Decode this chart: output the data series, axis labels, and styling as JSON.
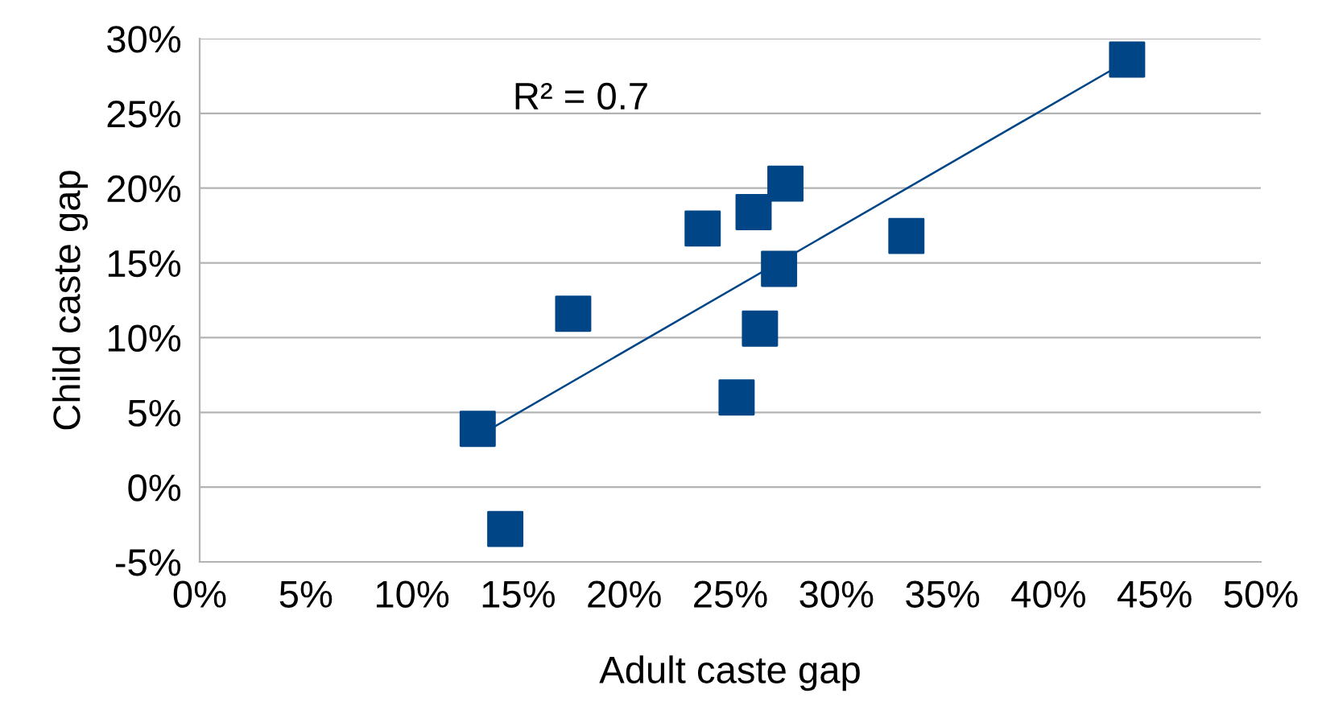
{
  "chart_data": {
    "type": "scatter",
    "xlabel": "Adult caste gap",
    "ylabel": "Child caste gap",
    "grid": "y",
    "legend": false,
    "x": [
      13.1,
      14.4,
      17.6,
      23.7,
      25.3,
      26.1,
      26.4,
      27.3,
      27.6,
      33.3,
      43.7
    ],
    "series": [
      {
        "marker": "square",
        "color": "#004586",
        "values": [
          3.9,
          -2.8,
          11.6,
          17.3,
          6.0,
          18.4,
          10.6,
          14.6,
          20.3,
          16.8,
          28.6
        ]
      },
      {
        "type": "line",
        "marker": "none",
        "line_style": "solid",
        "color": "#004586",
        "x": [
          13.1,
          43.7
        ],
        "values": [
          3.4,
          28.5
        ]
      }
    ],
    "annotations": [
      "R² = 0.7"
    ],
    "xlim": [
      0,
      50
    ],
    "ylim": [
      -5,
      30
    ],
    "xticks": [
      {
        "value": 0,
        "label": "0%"
      },
      {
        "value": 5,
        "label": "5%"
      },
      {
        "value": 10,
        "label": "10%"
      },
      {
        "value": 15,
        "label": "15%"
      },
      {
        "value": 20,
        "label": "20%"
      },
      {
        "value": 25,
        "label": "25%"
      },
      {
        "value": 30,
        "label": "30%"
      },
      {
        "value": 35,
        "label": "35%"
      },
      {
        "value": 40,
        "label": "40%"
      },
      {
        "value": 45,
        "label": "45%"
      },
      {
        "value": 50,
        "label": "50%"
      }
    ],
    "yticks": [
      {
        "value": -5,
        "label": "-5%"
      },
      {
        "value": 0,
        "label": "0%"
      },
      {
        "value": 5,
        "label": "5%"
      },
      {
        "value": 10,
        "label": "10%"
      },
      {
        "value": 15,
        "label": "15%"
      },
      {
        "value": 20,
        "label": "20%"
      },
      {
        "value": 25,
        "label": "25%"
      },
      {
        "value": 30,
        "label": "30%"
      }
    ]
  }
}
